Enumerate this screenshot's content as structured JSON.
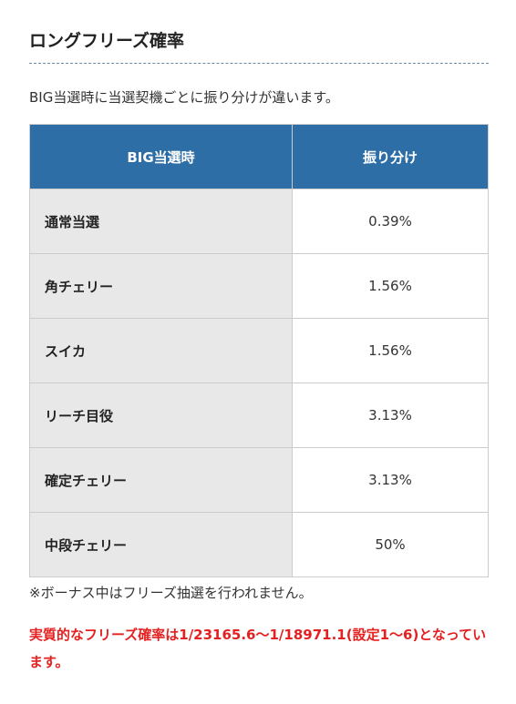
{
  "header": {
    "title": "ロングフリーズ確率"
  },
  "intro": "BIG当選時に当選契機ごとに振り分けが違います。",
  "table": {
    "headers": [
      "BIG当選時",
      "振り分け"
    ],
    "rows": [
      [
        "通常当選",
        "0.39%"
      ],
      [
        "角チェリー",
        "1.56%"
      ],
      [
        "スイカ",
        "1.56%"
      ],
      [
        "リーチ目役",
        "3.13%"
      ],
      [
        "確定チェリー",
        "3.13%"
      ],
      [
        "中段チェリー",
        "50%"
      ]
    ]
  },
  "note": "※ボーナス中はフリーズ抽選を行われません。",
  "highlight": "実質的なフリーズ確率は1/23165.6～1/18971.1(設定1～6)となっています。"
}
